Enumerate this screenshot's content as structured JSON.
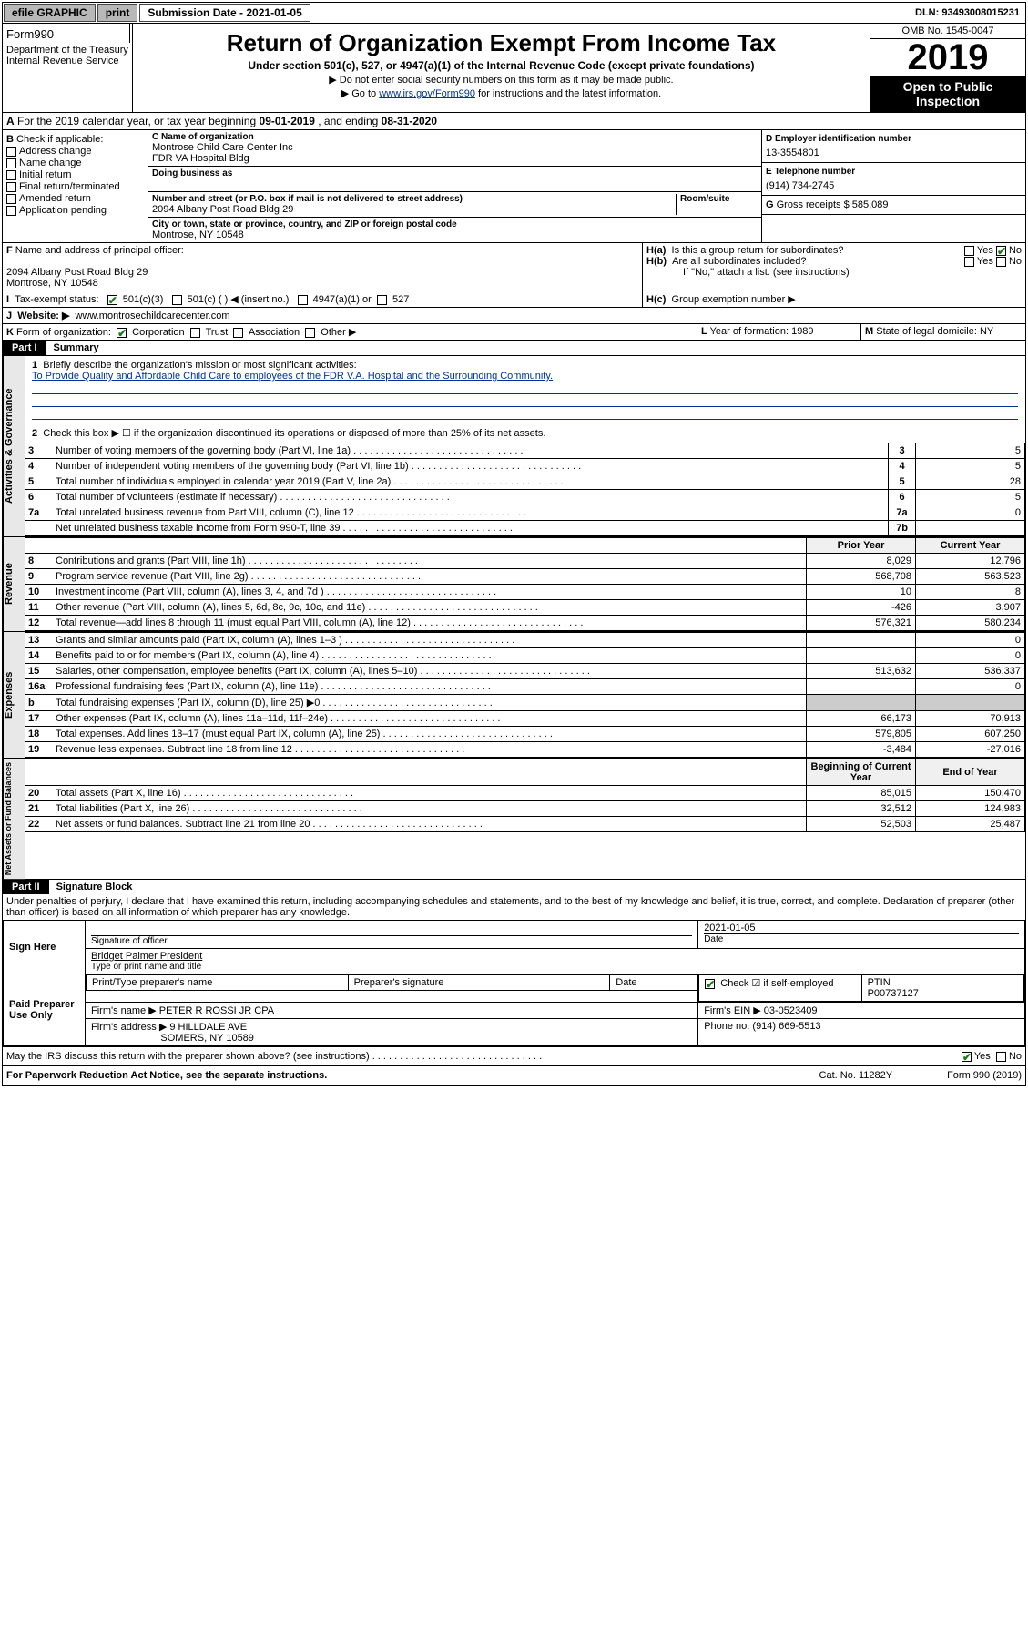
{
  "topbar": {
    "efile": "efile GRAPHIC",
    "print": "print",
    "submission_label": "Submission Date - 2021-01-05",
    "dln": "DLN: 93493008015231"
  },
  "header": {
    "form_prefix": "Form",
    "form_number": "990",
    "dept1": "Department of the Treasury",
    "dept2": "Internal Revenue Service",
    "title": "Return of Organization Exempt From Income Tax",
    "subtitle": "Under section 501(c), 527, or 4947(a)(1) of the Internal Revenue Code (except private foundations)",
    "note1": "▶ Do not enter social security numbers on this form as it may be made public.",
    "note2_prefix": "▶ Go to ",
    "note2_link": "www.irs.gov/Form990",
    "note2_suffix": " for instructions and the latest information.",
    "omb": "OMB No. 1545-0047",
    "year": "2019",
    "public": "Open to Public Inspection"
  },
  "tax_year": {
    "label_a": "A",
    "text_a": "For the 2019 calendar year, or tax year beginning ",
    "begin": "09-01-2019",
    "mid": " , and ending ",
    "end": "08-31-2020"
  },
  "section_b": {
    "label": "B",
    "title": "Check if applicable:",
    "items": [
      "Address change",
      "Name change",
      "Initial return",
      "Final return/terminated",
      "Amended return",
      "Application pending"
    ]
  },
  "section_c": {
    "name_label": "C Name of organization",
    "name1": "Montrose Child Care Center Inc",
    "name2": "FDR VA Hospital Bldg",
    "dba_label": "Doing business as",
    "addr_label": "Number and street (or P.O. box if mail is not delivered to street address)",
    "room_label": "Room/suite",
    "addr": "2094 Albany Post Road Bldg 29",
    "city_label": "City or town, state or province, country, and ZIP or foreign postal code",
    "city": "Montrose, NY  10548"
  },
  "section_d": {
    "label": "D Employer identification number",
    "ein": "13-3554801"
  },
  "section_e": {
    "label": "E Telephone number",
    "phone": "(914) 734-2745"
  },
  "section_g": {
    "label": "G",
    "text": "Gross receipts $ 585,089"
  },
  "section_f": {
    "label": "F",
    "text": "Name and address of principal officer:",
    "addr1": "2094 Albany Post Road Bldg 29",
    "addr2": "Montrose, NY  10548"
  },
  "section_h": {
    "ha_label": "H(a)",
    "ha_text": "Is this a group return for subordinates?",
    "hb_label": "H(b)",
    "hb_text": "Are all subordinates included?",
    "hb_note": "If \"No,\" attach a list. (see instructions)",
    "hc_label": "H(c)",
    "hc_text": "Group exemption number ▶",
    "yes": "Yes",
    "no": "No"
  },
  "section_i": {
    "label": "I",
    "text": "Tax-exempt status:",
    "opts": [
      "501(c)(3)",
      "501(c) (  ) ◀ (insert no.)",
      "4947(a)(1) or",
      "527"
    ]
  },
  "section_j": {
    "label": "J",
    "text": "Website: ▶",
    "url": "www.montrosechildcarecenter.com"
  },
  "section_k": {
    "label": "K",
    "text": "Form of organization:",
    "opts": [
      "Corporation",
      "Trust",
      "Association",
      "Other ▶"
    ]
  },
  "section_l": {
    "label": "L",
    "text": "Year of formation: 1989"
  },
  "section_m": {
    "label": "M",
    "text": "State of legal domicile: NY"
  },
  "part1": {
    "label": "Part I",
    "title": "Summary",
    "line1_label": "1",
    "line1_text": "Briefly describe the organization's mission or most significant activities:",
    "line1_value": "To Provide Quality and Affordable Child Care to employees of the FDR V.A. Hospital and the Surrounding Community.",
    "line2_label": "2",
    "line2_text": "Check this box ▶ ☐  if the organization discontinued its operations or disposed of more than 25% of its net assets.",
    "gov_side": "Activities & Governance",
    "rev_side": "Revenue",
    "exp_side": "Expenses",
    "net_side": "Net Assets or Fund Balances",
    "lines_gov": [
      {
        "n": "3",
        "text": "Number of voting members of the governing body (Part VI, line 1a)",
        "box": "3",
        "val": "5"
      },
      {
        "n": "4",
        "text": "Number of independent voting members of the governing body (Part VI, line 1b)",
        "box": "4",
        "val": "5"
      },
      {
        "n": "5",
        "text": "Total number of individuals employed in calendar year 2019 (Part V, line 2a)",
        "box": "5",
        "val": "28"
      },
      {
        "n": "6",
        "text": "Total number of volunteers (estimate if necessary)",
        "box": "6",
        "val": "5"
      },
      {
        "n": "7a",
        "text": "Total unrelated business revenue from Part VIII, column (C), line 12",
        "box": "7a",
        "val": "0"
      },
      {
        "n": "",
        "text": "Net unrelated business taxable income from Form 990-T, line 39",
        "box": "7b",
        "val": ""
      }
    ],
    "year_headers": [
      "Prior Year",
      "Current Year"
    ],
    "lines_rev": [
      {
        "n": "8",
        "text": "Contributions and grants (Part VIII, line 1h)",
        "py": "8,029",
        "cy": "12,796"
      },
      {
        "n": "9",
        "text": "Program service revenue (Part VIII, line 2g)",
        "py": "568,708",
        "cy": "563,523"
      },
      {
        "n": "10",
        "text": "Investment income (Part VIII, column (A), lines 3, 4, and 7d )",
        "py": "10",
        "cy": "8"
      },
      {
        "n": "11",
        "text": "Other revenue (Part VIII, column (A), lines 5, 6d, 8c, 9c, 10c, and 11e)",
        "py": "-426",
        "cy": "3,907"
      },
      {
        "n": "12",
        "text": "Total revenue—add lines 8 through 11 (must equal Part VIII, column (A), line 12)",
        "py": "576,321",
        "cy": "580,234"
      }
    ],
    "lines_exp": [
      {
        "n": "13",
        "text": "Grants and similar amounts paid (Part IX, column (A), lines 1–3 )",
        "py": "",
        "cy": "0"
      },
      {
        "n": "14",
        "text": "Benefits paid to or for members (Part IX, column (A), line 4)",
        "py": "",
        "cy": "0"
      },
      {
        "n": "15",
        "text": "Salaries, other compensation, employee benefits (Part IX, column (A), lines 5–10)",
        "py": "513,632",
        "cy": "536,337"
      },
      {
        "n": "16a",
        "text": "Professional fundraising fees (Part IX, column (A), line 11e)",
        "py": "",
        "cy": "0"
      },
      {
        "n": "b",
        "text": "Total fundraising expenses (Part IX, column (D), line 25) ▶0",
        "py": "—shade—",
        "cy": "—shade—"
      },
      {
        "n": "17",
        "text": "Other expenses (Part IX, column (A), lines 11a–11d, 11f–24e)",
        "py": "66,173",
        "cy": "70,913"
      },
      {
        "n": "18",
        "text": "Total expenses. Add lines 13–17 (must equal Part IX, column (A), line 25)",
        "py": "579,805",
        "cy": "607,250"
      },
      {
        "n": "19",
        "text": "Revenue less expenses. Subtract line 18 from line 12",
        "py": "-3,484",
        "cy": "-27,016"
      }
    ],
    "net_headers": [
      "Beginning of Current Year",
      "End of Year"
    ],
    "lines_net": [
      {
        "n": "20",
        "text": "Total assets (Part X, line 16)",
        "py": "85,015",
        "cy": "150,470"
      },
      {
        "n": "21",
        "text": "Total liabilities (Part X, line 26)",
        "py": "32,512",
        "cy": "124,983"
      },
      {
        "n": "22",
        "text": "Net assets or fund balances. Subtract line 21 from line 20",
        "py": "52,503",
        "cy": "25,487"
      }
    ]
  },
  "part2": {
    "label": "Part II",
    "title": "Signature Block",
    "perjury": "Under penalties of perjury, I declare that I have examined this return, including accompanying schedules and statements, and to the best of my knowledge and belief, it is true, correct, and complete. Declaration of preparer (other than officer) is based on all information of which preparer has any knowledge.",
    "sign_here": "Sign Here",
    "sig_officer": "Signature of officer",
    "date_label": "Date",
    "date_val": "2021-01-05",
    "officer_name": "Bridget Palmer  President",
    "officer_type": "Type or print name and title",
    "paid_label": "Paid Preparer Use Only",
    "prep_name_label": "Print/Type preparer's name",
    "prep_sig_label": "Preparer's signature",
    "prep_date_label": "Date",
    "check_self": "Check ☑ if self-employed",
    "ptin_label": "PTIN",
    "ptin": "P00737127",
    "firm_name_label": "Firm's name    ▶",
    "firm_name": "PETER R ROSSI JR CPA",
    "firm_ein_label": "Firm's EIN ▶",
    "firm_ein": "03-0523409",
    "firm_addr_label": "Firm's address ▶",
    "firm_addr1": "9 HILLDALE AVE",
    "firm_addr2": "SOMERS, NY  10589",
    "phone_label": "Phone no.",
    "phone": "(914) 669-5513",
    "discuss": "May the IRS discuss this return with the preparer shown above? (see instructions)",
    "yes": "Yes",
    "no": "No"
  },
  "footer": {
    "paperwork": "For Paperwork Reduction Act Notice, see the separate instructions.",
    "cat": "Cat. No. 11282Y",
    "form": "Form 990 (2019)"
  }
}
